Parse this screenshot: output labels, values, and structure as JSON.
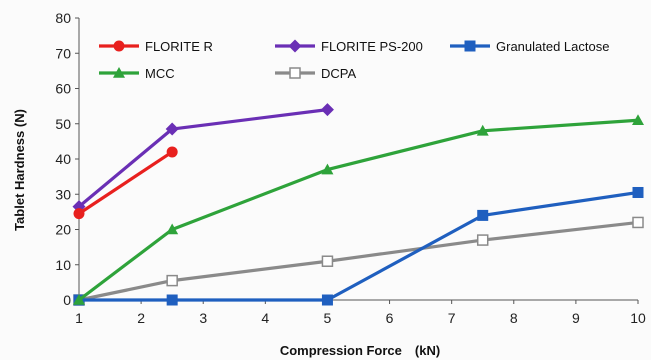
{
  "chart_data": {
    "type": "line",
    "title": "",
    "xlabel": "Compression Force　(kN)",
    "ylabel": "Tablet Hardness (N)",
    "xlim": [
      1,
      10
    ],
    "ylim": [
      0,
      80
    ],
    "x_ticks": [
      1,
      2,
      3,
      4,
      5,
      6,
      7,
      8,
      9,
      10
    ],
    "y_ticks": [
      0,
      10,
      20,
      30,
      40,
      50,
      60,
      70,
      80
    ],
    "x_tick_labels": [
      "1",
      "2",
      "3",
      "4",
      "5",
      "6",
      "7",
      "8",
      "9",
      "10"
    ],
    "y_tick_labels": [
      "0",
      "10",
      "20",
      "30",
      "40",
      "50",
      "60",
      "70",
      "80"
    ],
    "grid": false,
    "legend_position": "top",
    "series": [
      {
        "name": "FLORITE R",
        "color": "#e8201e",
        "marker": "circle",
        "x": [
          1,
          2.5
        ],
        "y": [
          24.5,
          42
        ]
      },
      {
        "name": "FLORITE PS-200",
        "color": "#6a2fb5",
        "marker": "diamond",
        "x": [
          1,
          2.5,
          5
        ],
        "y": [
          26.5,
          48.5,
          54
        ]
      },
      {
        "name": "Granulated Lactose",
        "color": "#1f5fbf",
        "marker": "square",
        "x": [
          1,
          2.5,
          5,
          7.5,
          10
        ],
        "y": [
          0,
          0,
          0,
          24,
          30.5
        ]
      },
      {
        "name": "MCC",
        "color": "#2ea33a",
        "marker": "triangle",
        "x": [
          1,
          2.5,
          5,
          7.5,
          10
        ],
        "y": [
          0,
          20,
          37,
          48,
          51
        ]
      },
      {
        "name": "DCPA",
        "color": "#8a8a8a",
        "marker": "open-square",
        "x": [
          1,
          2.5,
          5,
          7.5,
          10
        ],
        "y": [
          0,
          5.5,
          11,
          17,
          22
        ]
      }
    ]
  }
}
